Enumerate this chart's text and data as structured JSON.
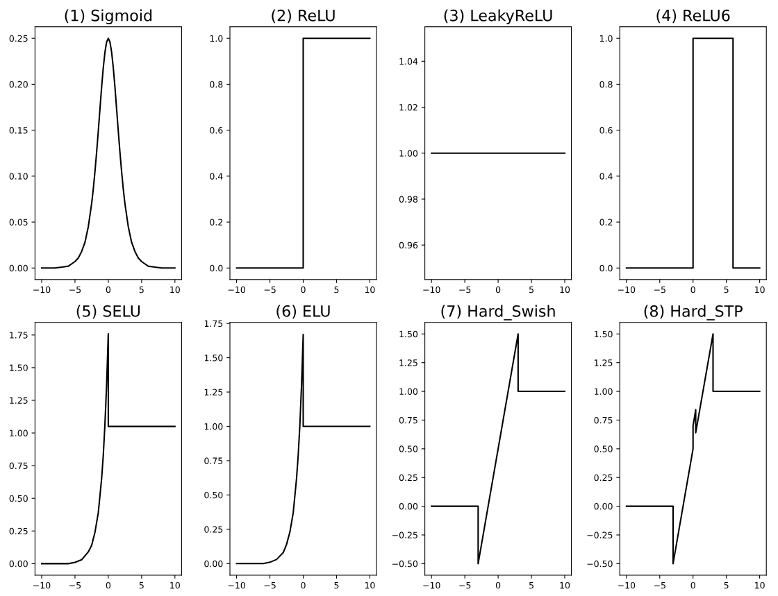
{
  "chart_data": [
    {
      "type": "line",
      "title": "(1) Sigmoid",
      "x": [
        -10,
        -8,
        -7,
        -6,
        -5,
        -4.5,
        -4,
        -3.5,
        -3,
        -2.5,
        -2.25,
        -2,
        -1.75,
        -1.5,
        -1.25,
        -1,
        -0.75,
        -0.5,
        -0.25,
        0,
        0.25,
        0.5,
        0.75,
        1,
        1.25,
        1.5,
        1.75,
        2,
        2.25,
        2.5,
        3,
        3.5,
        4,
        4.5,
        5,
        6,
        7,
        8,
        10
      ],
      "series": [
        {
          "color": "#000000",
          "values": [
            0.0,
            0.0,
            0.001,
            0.002,
            0.007,
            0.011,
            0.018,
            0.028,
            0.045,
            0.07,
            0.086,
            0.105,
            0.126,
            0.149,
            0.173,
            0.197,
            0.218,
            0.235,
            0.246,
            0.25,
            0.246,
            0.235,
            0.218,
            0.197,
            0.173,
            0.149,
            0.126,
            0.105,
            0.086,
            0.07,
            0.045,
            0.028,
            0.018,
            0.011,
            0.007,
            0.002,
            0.001,
            0.0,
            0.0
          ]
        }
      ],
      "xlim": [
        -11,
        11
      ],
      "xticks": [
        -10,
        -5,
        0,
        5,
        10
      ],
      "ylim": [
        -0.0125,
        0.2625
      ],
      "yticks": [
        {
          "value": 0,
          "label": "0.00"
        },
        0.05,
        {
          "value": 0.1,
          "label": "0.10"
        },
        0.15,
        {
          "value": 0.2,
          "label": "0.20"
        },
        0.25
      ]
    },
    {
      "type": "line",
      "title": "(2) ReLU",
      "x": [
        -10,
        0,
        0,
        10
      ],
      "series": [
        {
          "color": "#000000",
          "values": [
            0,
            0,
            1,
            1
          ]
        }
      ],
      "xlim": [
        -11,
        11
      ],
      "xticks": [
        -10,
        -5,
        0,
        5,
        10
      ],
      "ylim": [
        -0.05,
        1.05
      ],
      "yticks": [
        {
          "value": 0,
          "label": "0.0"
        },
        0.2,
        0.4,
        0.6,
        0.8,
        {
          "value": 1,
          "label": "1.0"
        }
      ]
    },
    {
      "type": "line",
      "title": "(3) LeakyReLU",
      "x": [
        -10,
        10
      ],
      "series": [
        {
          "color": "#000000",
          "values": [
            1,
            1
          ]
        }
      ],
      "xlim": [
        -11,
        11
      ],
      "xticks": [
        -10,
        -5,
        0,
        5,
        10
      ],
      "ylim": [
        0.945,
        1.055
      ],
      "yticks": [
        0.96,
        0.98,
        {
          "value": 1,
          "label": "1.00"
        },
        1.02,
        1.04
      ]
    },
    {
      "type": "line",
      "title": "(4) ReLU6",
      "x": [
        -10,
        0,
        0,
        6,
        6,
        10
      ],
      "series": [
        {
          "color": "#000000",
          "values": [
            0,
            0,
            1,
            1,
            0,
            0
          ]
        }
      ],
      "xlim": [
        -11,
        11
      ],
      "xticks": [
        -10,
        -5,
        0,
        5,
        10
      ],
      "ylim": [
        -0.05,
        1.05
      ],
      "yticks": [
        {
          "value": 0,
          "label": "0.0"
        },
        0.2,
        0.4,
        0.6,
        0.8,
        {
          "value": 1,
          "label": "1.0"
        }
      ]
    },
    {
      "type": "line",
      "title": "(5) SELU",
      "x": [
        -10,
        -6,
        -5,
        -4,
        -3,
        -2.5,
        -2,
        -1.5,
        -1,
        -0.75,
        -0.5,
        -0.25,
        0,
        0,
        10
      ],
      "series": [
        {
          "color": "#000000",
          "values": [
            0.0,
            0.0,
            0.01,
            0.03,
            0.09,
            0.14,
            0.24,
            0.39,
            0.65,
            0.83,
            1.07,
            1.37,
            1.76,
            1.05,
            1.05
          ]
        }
      ],
      "xlim": [
        -11,
        11
      ],
      "xticks": [
        -10,
        -5,
        0,
        5,
        10
      ],
      "ylim": [
        -0.088,
        1.846
      ],
      "yticks": [
        {
          "value": 0,
          "label": "0.00"
        },
        0.25,
        {
          "value": 0.5,
          "label": "0.50"
        },
        0.75,
        {
          "value": 1,
          "label": "1.00"
        },
        1.25,
        {
          "value": 1.5,
          "label": "1.50"
        },
        1.75
      ]
    },
    {
      "type": "line",
      "title": "(6) ELU",
      "x": [
        -10,
        -6,
        -5,
        -4,
        -3,
        -2.5,
        -2,
        -1.5,
        -1,
        -0.75,
        -0.5,
        -0.25,
        0,
        0,
        10
      ],
      "series": [
        {
          "color": "#000000",
          "values": [
            0.0,
            0.0,
            0.01,
            0.03,
            0.08,
            0.14,
            0.23,
            0.37,
            0.62,
            0.79,
            1.01,
            1.3,
            1.67,
            1.0,
            1.0
          ]
        }
      ],
      "xlim": [
        -11,
        11
      ],
      "xticks": [
        -10,
        -5,
        0,
        5,
        10
      ],
      "ylim": [
        -0.084,
        1.757
      ],
      "yticks": [
        {
          "value": 0,
          "label": "0.00"
        },
        0.25,
        {
          "value": 0.5,
          "label": "0.50"
        },
        0.75,
        {
          "value": 1,
          "label": "1.00"
        },
        1.25,
        {
          "value": 1.5,
          "label": "1.50"
        },
        1.75
      ]
    },
    {
      "type": "line",
      "title": "(7) Hard_Swish",
      "x": [
        -10,
        -3,
        -3,
        3,
        3,
        10
      ],
      "series": [
        {
          "color": "#000000",
          "values": [
            0,
            0,
            -0.5,
            1.5,
            1,
            1
          ]
        }
      ],
      "xlim": [
        -11,
        11
      ],
      "xticks": [
        -10,
        -5,
        0,
        5,
        10
      ],
      "ylim": [
        -0.6,
        1.6
      ],
      "yticks": [
        {
          "value": -0.5,
          "label": "−0.50"
        },
        {
          "value": -0.25,
          "label": "−0.25"
        },
        {
          "value": 0,
          "label": "0.00"
        },
        0.25,
        {
          "value": 0.5,
          "label": "0.50"
        },
        0.75,
        {
          "value": 1,
          "label": "1.00"
        },
        1.25,
        {
          "value": 1.5,
          "label": "1.50"
        }
      ]
    },
    {
      "type": "line",
      "title": "(8) Hard_STP",
      "x": [
        -10,
        -3,
        -3,
        0,
        0,
        0.4,
        0.4,
        3,
        3,
        10
      ],
      "series": [
        {
          "color": "#000000",
          "values": [
            0,
            0,
            -0.5,
            0.5,
            0.7,
            0.84,
            0.64,
            1.5,
            1,
            1
          ]
        }
      ],
      "xlim": [
        -11,
        11
      ],
      "xticks": [
        -10,
        -5,
        0,
        5,
        10
      ],
      "ylim": [
        -0.6,
        1.6
      ],
      "yticks": [
        {
          "value": -0.5,
          "label": "−0.50"
        },
        {
          "value": -0.25,
          "label": "−0.25"
        },
        {
          "value": 0,
          "label": "0.00"
        },
        0.25,
        {
          "value": 0.5,
          "label": "0.50"
        },
        0.75,
        {
          "value": 1,
          "label": "1.00"
        },
        1.25,
        {
          "value": 1.5,
          "label": "1.50"
        }
      ]
    }
  ]
}
